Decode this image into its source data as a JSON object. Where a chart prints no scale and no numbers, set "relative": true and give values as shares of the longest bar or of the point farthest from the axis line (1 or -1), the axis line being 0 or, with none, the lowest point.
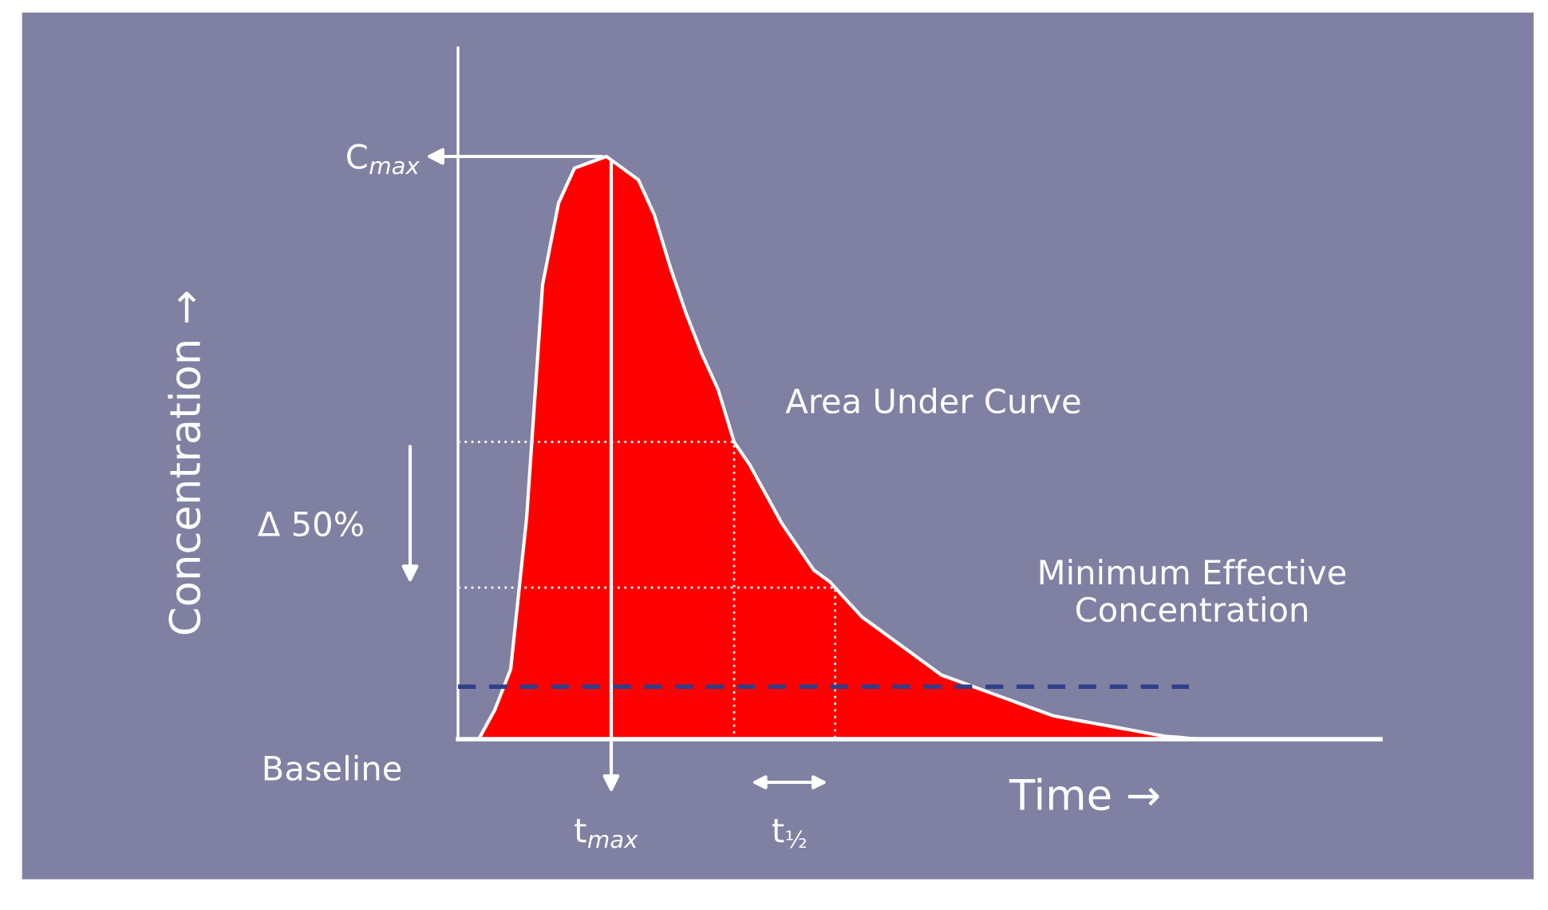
{
  "chart_data": {
    "type": "area",
    "relative": true,
    "xlabel": "Time →",
    "categories": [
      null,
      null,
      null,
      null,
      null,
      null,
      null,
      null,
      null,
      null,
      null,
      null,
      null,
      null,
      null,
      null,
      null,
      null,
      null,
      null,
      null,
      null,
      null,
      null,
      null,
      null,
      null,
      null,
      null,
      null,
      null,
      null,
      null,
      null,
      null,
      null,
      null,
      null,
      null,
      null,
      null,
      null,
      null,
      null,
      null,
      null,
      null,
      null,
      null,
      null,
      null,
      null,
      null,
      null,
      null,
      null,
      null,
      null
    ],
    "series": [
      {
        "color": "#ff0000",
        "values": [
          0,
          0,
          0.05,
          0.12,
          0.38,
          0.78,
          0.92,
          0.98,
          0.99,
          1.0,
          0.98,
          0.96,
          0.9,
          0.81,
          0.73,
          0.66,
          0.6,
          0.51,
          0.47,
          0.42,
          0.37,
          0.33,
          0.29,
          0.27,
          0.24,
          0.21,
          0.19,
          0.17,
          0.15,
          0.13,
          0.11,
          0.1,
          0.09,
          0.08,
          0.07,
          0.06,
          0.05,
          0.04,
          0.035,
          0.03,
          0.025,
          0.02,
          0.015,
          0.01,
          0.005,
          0.003,
          0,
          0,
          0,
          0,
          0,
          0,
          0,
          0,
          0,
          0,
          0,
          0
        ]
      }
    ],
    "ref_lines": [
      {
        "axis": "y",
        "value": 0.51,
        "color": "#ffffff",
        "line_style": "dotted"
      },
      {
        "axis": "y",
        "value": 0.26,
        "color": "#ffffff",
        "line_style": "dotted"
      },
      {
        "axis": "y",
        "value": 0.09,
        "color": "#2e3f8a",
        "line_style": "dashed",
        "label": "Minimum Effective\nConcentration"
      }
    ],
    "annotations": [
      "C$_{max}$",
      "t$_{max}$",
      "t$_{½}$",
      "Δ 50%",
      "Area Under Curve",
      "Baseline",
      "Concentration →"
    ]
  }
}
